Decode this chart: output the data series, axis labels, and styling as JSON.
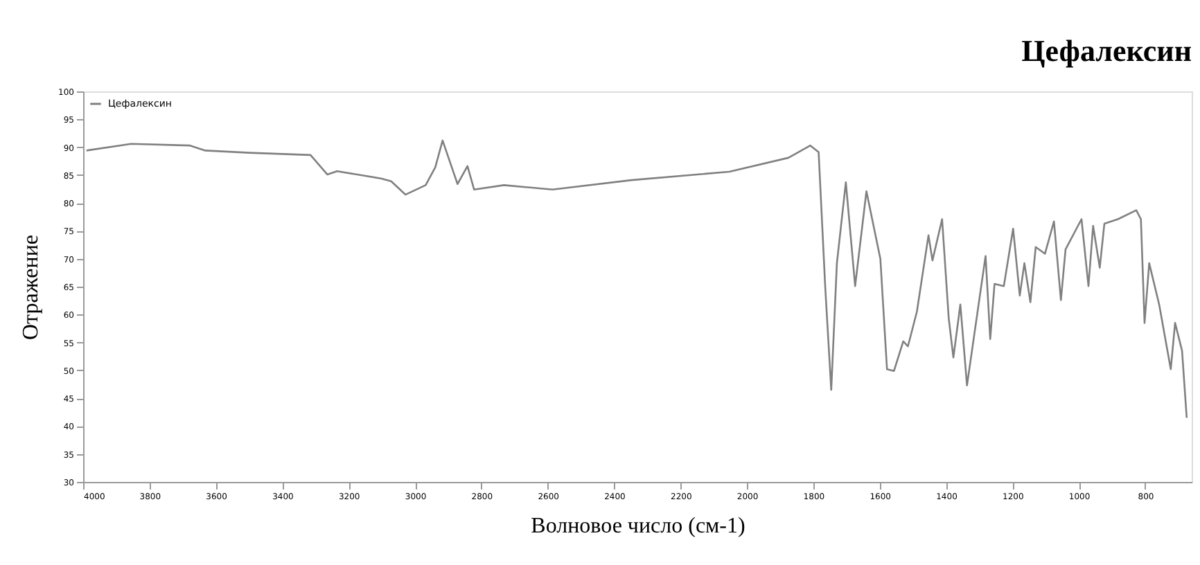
{
  "chart_data": {
    "type": "line",
    "title": "Цефалексин",
    "xlabel": "Волновое число (см-1)",
    "ylabel": "Отражение",
    "xlim": [
      4000,
      660
    ],
    "xticks": [
      4000,
      3800,
      3600,
      3400,
      3200,
      3000,
      2800,
      2600,
      2400,
      2200,
      2000,
      1800,
      1600,
      1400,
      1200,
      1000,
      800
    ],
    "ylim": [
      30,
      100
    ],
    "yticks": [
      30,
      35,
      40,
      45,
      50,
      55,
      60,
      65,
      70,
      75,
      80,
      85,
      90,
      95,
      100
    ],
    "grid": false,
    "legend": "top left",
    "marker": "none",
    "line_style": "solid",
    "series": [
      {
        "name": "Цефалексин",
        "color": "#808080",
        "x": [
          3990,
          3855,
          3678,
          3632,
          3500,
          3315,
          3264,
          3235,
          3103,
          3072,
          3029,
          2968,
          2939,
          2917,
          2872,
          2842,
          2822,
          2732,
          2586,
          2348,
          2053,
          1875,
          1809,
          1784,
          1764,
          1746,
          1729,
          1702,
          1674,
          1640,
          1598,
          1578,
          1557,
          1529,
          1515,
          1488,
          1453,
          1441,
          1412,
          1392,
          1378,
          1357,
          1337,
          1281,
          1267,
          1254,
          1226,
          1198,
          1178,
          1164,
          1146,
          1130,
          1102,
          1075,
          1054,
          1040,
          992,
          971,
          957,
          937,
          923,
          882,
          827,
          813,
          802,
          788,
          758,
          723,
          710,
          689,
          675
        ],
        "values": [
          89.4,
          90.6,
          90.3,
          89.4,
          89.0,
          88.6,
          85.1,
          85.7,
          84.4,
          83.9,
          81.5,
          83.2,
          86.4,
          91.2,
          83.4,
          86.6,
          82.4,
          83.2,
          82.4,
          84.1,
          85.6,
          88.1,
          90.3,
          89.1,
          64.8,
          46.5,
          69.2,
          83.7,
          65.1,
          82.1,
          70.0,
          50.2,
          49.9,
          55.2,
          54.3,
          60.5,
          74.2,
          69.7,
          77.1,
          59.3,
          52.3,
          61.8,
          47.3,
          70.5,
          55.6,
          65.5,
          65.1,
          75.4,
          63.4,
          69.2,
          62.2,
          72.1,
          70.9,
          76.7,
          62.6,
          71.7,
          77.1,
          65.1,
          75.9,
          68.4,
          76.3,
          77.1,
          78.7,
          77.1,
          58.5,
          69.2,
          61.8,
          50.2,
          58.5,
          53.5,
          41.5
        ]
      }
    ]
  }
}
